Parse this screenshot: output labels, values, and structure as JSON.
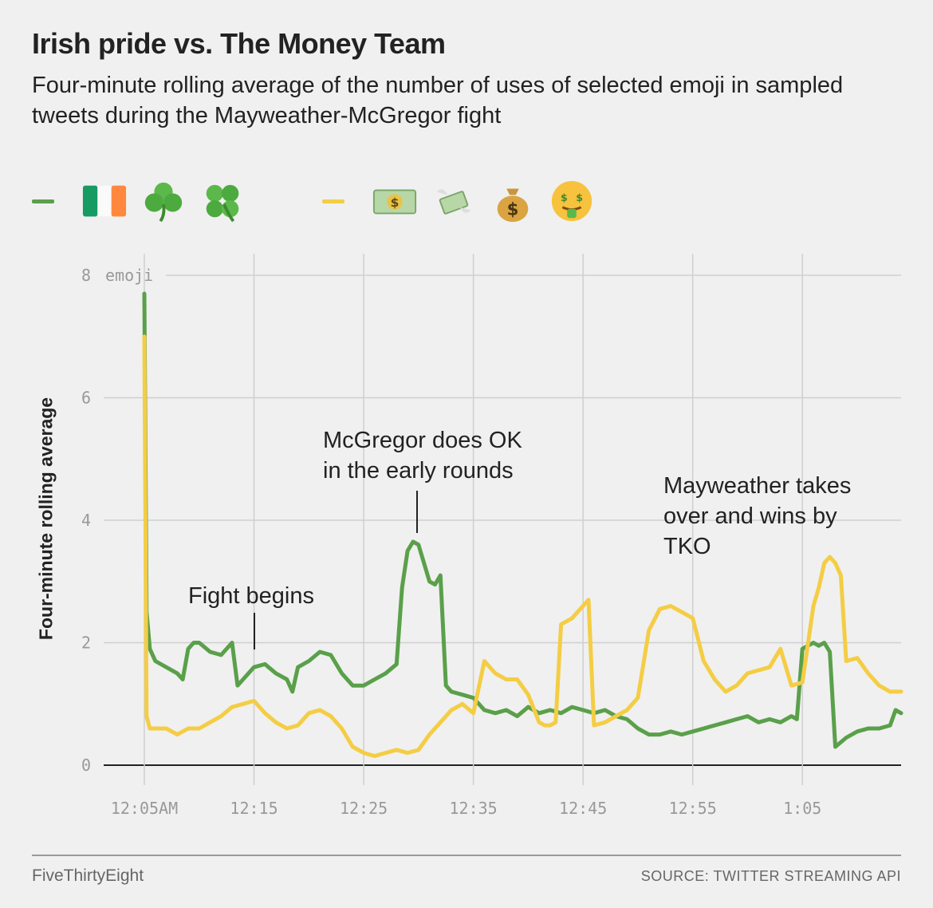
{
  "header": {
    "title": "Irish pride vs. The Money Team",
    "subtitle": "Four-minute rolling average of the number of uses of selected emoji in sampled tweets during the Mayweather-McGregor fight"
  },
  "legend": {
    "irish": {
      "color": "#5aa04a",
      "emoji": [
        "irish-flag-icon",
        "shamrock-icon",
        "four-leaf-clover-icon"
      ]
    },
    "money": {
      "color": "#f4cd45",
      "emoji": [
        "dollar-banknote-icon",
        "money-with-wings-icon",
        "money-bag-icon",
        "money-mouth-face-icon"
      ]
    }
  },
  "annotations": {
    "fight_begins": "Fight begins",
    "mcgregor_line1": "McGregor does OK",
    "mcgregor_line2": "in the early rounds",
    "mayweather_line1": "Mayweather takes",
    "mayweather_line2": "over and wins by",
    "mayweather_line3": "TKO"
  },
  "footer": {
    "brand": "FiveThirtyEight",
    "source": "SOURCE: TWITTER STREAMING API"
  },
  "chart_data": {
    "type": "line",
    "title": "Irish pride vs. The Money Team",
    "subtitle": "Four-minute rolling average of the number of uses of selected emoji in sampled tweets during the Mayweather-McGregor fight",
    "ylabel": "Four-minute rolling average",
    "y_unit_label": "emoji",
    "ylim": [
      0,
      8
    ],
    "yticks": [
      0,
      2,
      4,
      6,
      8
    ],
    "xlim": [
      5,
      74
    ],
    "xticks": [
      5,
      15,
      25,
      35,
      45,
      55,
      65
    ],
    "xtick_labels": [
      "12:05AM",
      "12:15",
      "12:25",
      "12:35",
      "12:45",
      "12:55",
      "1:05"
    ],
    "x_unit": "minutes after midnight",
    "grid": true,
    "series": [
      {
        "name": "irish",
        "color": "#5aa04a",
        "x": [
          5,
          5.2,
          5.5,
          6,
          7,
          8,
          8.5,
          9,
          9.5,
          10,
          11,
          12,
          13,
          13.5,
          14,
          15,
          16,
          17,
          18,
          18.5,
          19,
          20,
          21,
          22,
          23,
          24,
          25,
          26,
          27,
          28,
          28.5,
          29,
          29.5,
          30,
          31,
          31.5,
          32,
          32.5,
          33,
          34,
          35,
          36,
          37,
          38,
          39,
          40,
          41,
          42,
          43,
          44,
          45,
          46,
          47,
          48,
          49,
          50,
          51,
          52,
          53,
          54,
          55,
          56,
          57,
          58,
          59,
          60,
          61,
          62,
          63,
          64,
          64.5,
          65,
          66,
          66.5,
          67,
          67.5,
          68,
          69,
          70,
          71,
          72,
          73,
          73.5,
          74
        ],
        "y": [
          7.7,
          2.5,
          1.9,
          1.7,
          1.6,
          1.5,
          1.4,
          1.9,
          2.0,
          2.0,
          1.85,
          1.8,
          2.0,
          1.3,
          1.4,
          1.6,
          1.65,
          1.5,
          1.4,
          1.2,
          1.6,
          1.7,
          1.85,
          1.8,
          1.5,
          1.3,
          1.3,
          1.4,
          1.5,
          1.65,
          2.9,
          3.5,
          3.65,
          3.6,
          3.0,
          2.95,
          3.1,
          1.3,
          1.2,
          1.15,
          1.1,
          0.9,
          0.85,
          0.9,
          0.8,
          0.95,
          0.85,
          0.9,
          0.85,
          0.95,
          0.9,
          0.85,
          0.9,
          0.8,
          0.75,
          0.6,
          0.5,
          0.5,
          0.55,
          0.5,
          0.55,
          0.6,
          0.65,
          0.7,
          0.75,
          0.8,
          0.7,
          0.75,
          0.7,
          0.8,
          0.75,
          1.9,
          2.0,
          1.95,
          2.0,
          1.85,
          0.3,
          0.45,
          0.55,
          0.6,
          0.6,
          0.65,
          0.9,
          0.85
        ]
      },
      {
        "name": "money",
        "color": "#f4cd45",
        "x": [
          5,
          5.2,
          5.5,
          6,
          7,
          8,
          9,
          10,
          11,
          12,
          13,
          14,
          15,
          16,
          17,
          18,
          19,
          20,
          21,
          22,
          23,
          24,
          25,
          26,
          27,
          28,
          29,
          30,
          31,
          32,
          33,
          34,
          35,
          36,
          37,
          38,
          39,
          40,
          41,
          41.5,
          42,
          42.5,
          43,
          44,
          44.5,
          45,
          45.5,
          46,
          47,
          48,
          49,
          50,
          51,
          52,
          53,
          54,
          55,
          56,
          57,
          58,
          59,
          60,
          61,
          62,
          63,
          64,
          65,
          66,
          66.5,
          67,
          67.5,
          68,
          68.5,
          69,
          70,
          71,
          72,
          73,
          74
        ],
        "y": [
          7.0,
          0.8,
          0.6,
          0.6,
          0.6,
          0.5,
          0.6,
          0.6,
          0.7,
          0.8,
          0.95,
          1.0,
          1.05,
          0.85,
          0.7,
          0.6,
          0.65,
          0.85,
          0.9,
          0.8,
          0.6,
          0.3,
          0.2,
          0.15,
          0.2,
          0.25,
          0.2,
          0.25,
          0.5,
          0.7,
          0.9,
          1.0,
          0.85,
          1.7,
          1.5,
          1.4,
          1.4,
          1.15,
          0.7,
          0.65,
          0.65,
          0.7,
          2.3,
          2.4,
          2.5,
          2.6,
          2.7,
          0.65,
          0.7,
          0.8,
          0.9,
          1.1,
          2.2,
          2.55,
          2.6,
          2.5,
          2.4,
          1.7,
          1.4,
          1.2,
          1.3,
          1.5,
          1.55,
          1.6,
          1.9,
          1.3,
          1.35,
          2.6,
          2.9,
          3.3,
          3.4,
          3.3,
          3.1,
          1.7,
          1.75,
          1.5,
          1.3,
          1.2,
          1.2
        ]
      }
    ]
  }
}
